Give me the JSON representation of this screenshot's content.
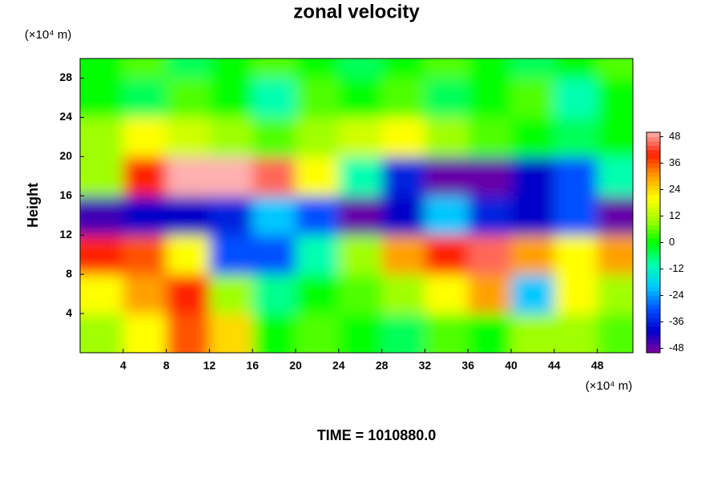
{
  "chart_data": {
    "type": "heatmap",
    "title": "zonal velocity",
    "ylabel": "Height",
    "yunit": "(×10⁴ m)",
    "xunit": "(×10⁴ m)",
    "annotation": "TIME = 1010880.0",
    "x": [
      2,
      6,
      10,
      14,
      18,
      22,
      26,
      30,
      34,
      38,
      42,
      46,
      50
    ],
    "y": [
      2,
      6,
      10,
      14,
      18,
      22,
      26,
      30
    ],
    "z": [
      [
        10,
        20,
        36,
        24,
        0,
        5,
        0,
        -5,
        5,
        0,
        10,
        10,
        5
      ],
      [
        20,
        30,
        40,
        10,
        -8,
        0,
        5,
        10,
        20,
        30,
        -20,
        20,
        10
      ],
      [
        40,
        36,
        20,
        -30,
        -30,
        -10,
        10,
        30,
        40,
        45,
        30,
        20,
        30
      ],
      [
        -45,
        -40,
        -40,
        -36,
        -20,
        -30,
        -48,
        -40,
        -20,
        -36,
        -40,
        -30,
        -48
      ],
      [
        10,
        40,
        50,
        50,
        45,
        20,
        -10,
        -36,
        -48,
        -48,
        -40,
        -30,
        -10
      ],
      [
        10,
        20,
        15,
        10,
        5,
        10,
        15,
        20,
        10,
        5,
        0,
        -5,
        0
      ],
      [
        0,
        -5,
        5,
        0,
        -10,
        5,
        0,
        5,
        -5,
        0,
        5,
        -10,
        0
      ],
      [
        0,
        5,
        -5,
        0,
        5,
        0,
        -5,
        0,
        5,
        0,
        -5,
        0,
        5
      ]
    ],
    "xlim": [
      0,
      51.3
    ],
    "ylim": [
      0,
      30
    ],
    "xticks": [
      4,
      8,
      12,
      16,
      20,
      24,
      28,
      32,
      36,
      40,
      44,
      48
    ],
    "yticks": [
      4,
      8,
      12,
      16,
      20,
      24,
      28
    ],
    "clim": [
      -50,
      50
    ],
    "cticks": [
      48,
      36,
      24,
      12,
      0,
      -12,
      -24,
      -36,
      -48
    ],
    "colormap": [
      "#8000a0",
      "#0000c8",
      "#0050ff",
      "#00c8ff",
      "#00ffb0",
      "#00ff00",
      "#a0ff00",
      "#ffff00",
      "#ffa000",
      "#ff2000",
      "#ffb0b0"
    ]
  }
}
